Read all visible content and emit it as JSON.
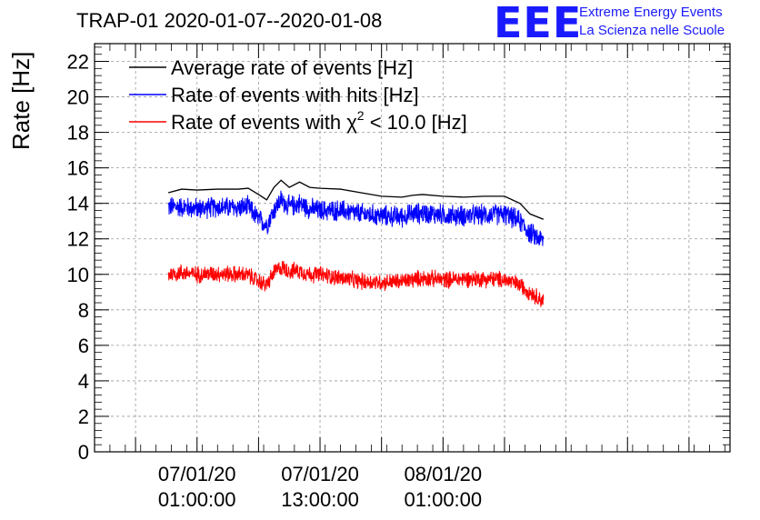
{
  "title": "TRAP-01 2020-01-07--2020-01-08",
  "logo": {
    "letters": "EEE",
    "line1": "Extreme Energy Events",
    "line2": "La Scienza nelle Scuole",
    "color": "#1a1aff"
  },
  "chart_data": {
    "type": "line",
    "title": "TRAP-01 2020-01-07--2020-01-08",
    "xlabel": "",
    "ylabel": "Rate [Hz]",
    "ylim": [
      0,
      23
    ],
    "yticks": [
      0,
      2,
      4,
      6,
      8,
      10,
      12,
      14,
      16,
      18,
      20,
      22
    ],
    "xlim_hours": [
      -10,
      52
    ],
    "xticks": [
      {
        "hours": 0,
        "date": "07/01/20",
        "time": "01:00:00"
      },
      {
        "hours": 12,
        "date": "07/01/20",
        "time": "13:00:00"
      },
      {
        "hours": 24,
        "date": "08/01/20",
        "time": "01:00:00"
      }
    ],
    "grid": true,
    "legend_position": "top-left",
    "series": [
      {
        "name": "Average rate of events [Hz]",
        "color": "#000000",
        "x_hours": [
          -2.8,
          -1.5,
          0,
          2,
          4,
          5,
          6,
          6.8,
          7.5,
          8.2,
          9,
          10,
          11,
          12,
          14,
          16,
          18,
          20,
          21,
          22,
          24,
          26,
          28,
          30,
          31.5,
          32.5,
          33.8
        ],
        "values": [
          14.6,
          14.8,
          14.75,
          14.8,
          14.8,
          14.85,
          14.5,
          14.2,
          14.9,
          15.3,
          14.9,
          15.2,
          14.9,
          14.85,
          14.8,
          14.6,
          14.4,
          14.35,
          14.45,
          14.5,
          14.4,
          14.35,
          14.4,
          14.4,
          14.0,
          13.4,
          13.1
        ]
      },
      {
        "name": "Rate of events with hits [Hz]",
        "color": "#0000ff",
        "x_hours": [
          -2.8,
          -1.5,
          0,
          2,
          4,
          5,
          6,
          6.8,
          7.5,
          8.2,
          9,
          10,
          11,
          12,
          14,
          16,
          18,
          20,
          21,
          22,
          24,
          26,
          28,
          30,
          31.5,
          32.5,
          33.8
        ],
        "values": [
          13.8,
          13.8,
          13.7,
          13.8,
          13.75,
          13.8,
          13.1,
          12.8,
          13.6,
          14.2,
          13.8,
          14.0,
          13.7,
          13.6,
          13.6,
          13.4,
          13.3,
          13.25,
          13.4,
          13.45,
          13.35,
          13.3,
          13.35,
          13.4,
          13.0,
          12.3,
          11.9
        ],
        "noise_amplitude": 0.5
      },
      {
        "name": "Rate of events with χ² < 10.0 [Hz]",
        "color": "#ff0000",
        "x_hours": [
          -2.8,
          -1.5,
          0,
          2,
          4,
          5,
          6,
          6.8,
          7.5,
          8.2,
          9,
          10,
          11,
          12,
          14,
          16,
          18,
          20,
          21,
          22,
          24,
          26,
          28,
          30,
          31.5,
          32.5,
          33.8
        ],
        "values": [
          10.0,
          10.1,
          10.0,
          10.05,
          10.0,
          9.95,
          9.6,
          9.4,
          10.1,
          10.4,
          10.2,
          10.2,
          10.0,
          10.0,
          9.8,
          9.6,
          9.55,
          9.6,
          9.7,
          9.8,
          9.7,
          9.75,
          9.75,
          9.7,
          9.4,
          9.0,
          8.5
        ],
        "noise_amplitude": 0.4
      }
    ],
    "legend": {
      "line1": "Average rate of events [Hz]",
      "line2": "Rate of events with hits [Hz]",
      "line3_prefix": "Rate of events with ",
      "line3_symbol": "χ",
      "line3_sup": "2",
      "line3_suffix": " < 10.0 [Hz]"
    }
  }
}
